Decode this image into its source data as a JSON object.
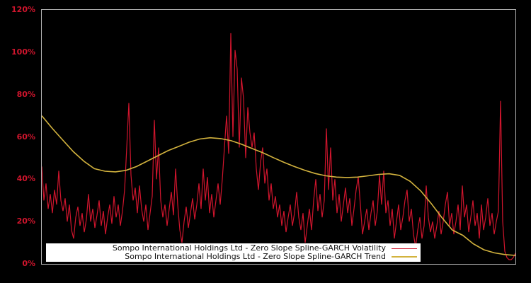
{
  "figure": {
    "background": "#000000",
    "plot_border_color": "#b4b4b4"
  },
  "y_axis": {
    "label_color": "#d0152d"
  },
  "legend": {
    "background": "#ffffff",
    "text_color": "#111111",
    "entries": [
      {
        "label": "Sompo International Holdings Ltd - Zero Slope Spline-GARCH Volatility",
        "color": "#d0152d",
        "thickness": 1
      },
      {
        "label": "Sompo International Holdings Ltd - Zero Slope Spline-GARCH Trend",
        "color": "#d3b33e",
        "thickness": 2
      }
    ]
  },
  "chart_data": {
    "type": "line",
    "title": "",
    "xlabel": "",
    "ylabel": "",
    "ylim": [
      0,
      120
    ],
    "y_unit": "%",
    "grid": false,
    "x_tick_labels": [],
    "y_tick_values": [
      0,
      20,
      40,
      60,
      80,
      100,
      120
    ],
    "y_tick_labels": [
      "0%",
      "20%",
      "40%",
      "60%",
      "80%",
      "100%",
      "120%"
    ],
    "legend_position": "bottom-inside",
    "series": [
      {
        "name": "Sompo International Holdings Ltd - Zero Slope Spline-GARCH Volatility",
        "color": "#d0152d",
        "stroke_width": 1.2,
        "values": [
          46,
          30,
          38,
          26,
          33,
          24,
          35,
          28,
          44,
          30,
          25,
          31,
          20,
          28,
          16,
          12,
          22,
          27,
          18,
          24,
          15,
          21,
          33,
          20,
          26,
          17,
          23,
          30,
          18,
          25,
          14,
          22,
          28,
          19,
          32,
          22,
          28,
          18,
          25,
          35,
          55,
          76,
          42,
          30,
          36,
          24,
          37,
          26,
          20,
          28,
          16,
          24,
          32,
          68,
          40,
          55,
          30,
          22,
          28,
          18,
          26,
          34,
          23,
          45,
          28,
          16,
          10,
          20,
          27,
          17,
          24,
          31,
          21,
          28,
          38,
          26,
          45,
          30,
          41,
          24,
          33,
          22,
          30,
          38,
          28,
          40,
          55,
          70,
          52,
          109,
          60,
          101,
          92,
          55,
          88,
          78,
          50,
          74,
          62,
          55,
          62,
          45,
          35,
          48,
          55,
          38,
          45,
          30,
          38,
          26,
          32,
          22,
          28,
          18,
          25,
          15,
          22,
          28,
          18,
          24,
          34,
          22,
          16,
          24,
          10,
          18,
          26,
          16,
          30,
          40,
          25,
          33,
          22,
          30,
          64,
          35,
          55,
          30,
          40,
          24,
          33,
          20,
          28,
          36,
          24,
          31,
          18,
          26,
          35,
          41,
          28,
          14,
          20,
          26,
          16,
          24,
          30,
          18,
          25,
          42,
          28,
          44,
          24,
          30,
          18,
          26,
          12,
          20,
          28,
          16,
          22,
          30,
          35,
          20,
          26,
          14,
          8,
          16,
          22,
          12,
          18,
          37,
          22,
          15,
          20,
          12,
          18,
          25,
          14,
          20,
          28,
          34,
          18,
          24,
          14,
          20,
          28,
          16,
          37,
          22,
          28,
          15,
          22,
          30,
          18,
          24,
          12,
          28,
          16,
          22,
          31,
          18,
          24,
          14,
          20,
          25,
          77,
          20,
          6,
          3,
          2,
          2,
          3,
          5
        ]
      },
      {
        "name": "Sompo International Holdings Ltd - Zero Slope Spline-GARCH Trend",
        "color": "#d3b33e",
        "stroke_width": 1.6,
        "values": [
          70,
          64,
          58.5,
          53,
          48.5,
          45,
          43.8,
          43.5,
          44.2,
          46,
          48.5,
          51,
          53.5,
          55.5,
          57.5,
          59,
          59.6,
          59.2,
          58.2,
          56.5,
          54.5,
          52.5,
          50.2,
          48,
          46,
          44.2,
          42.7,
          41.6,
          41,
          40.8,
          41,
          41.6,
          42.3,
          42.6,
          41.8,
          39,
          34.5,
          28.5,
          22,
          16,
          13.5,
          9.5,
          6.7,
          5.2,
          4.4,
          4
        ]
      }
    ]
  }
}
